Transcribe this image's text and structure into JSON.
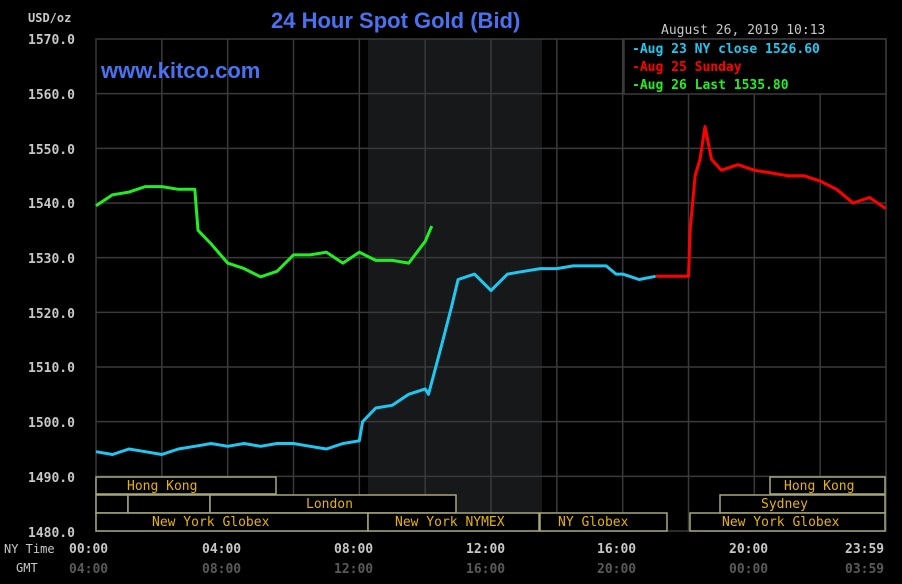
{
  "header": {
    "title": "24 Hour Spot Gold (Bid)",
    "brand": "www.kitco.com",
    "unit": "USD/oz",
    "timestamp": "August 26, 2019 10:13"
  },
  "legend": [
    {
      "label": "Aug 23 NY close 1526.60",
      "color": "#1ec8f0"
    },
    {
      "label": "Aug 25 Sunday",
      "color": "#ff0000"
    },
    {
      "label": "Aug 26 Last 1535.80",
      "color": "#22ee22"
    }
  ],
  "axis": {
    "y_ticks": [
      "1570.0",
      "1560.0",
      "1550.0",
      "1540.0",
      "1530.0",
      "1520.0",
      "1510.0",
      "1500.0",
      "1490.0",
      "1480.0"
    ],
    "x_row_label": "NY Time",
    "x_gmt_label": "GMT",
    "x_ticks_ny": [
      "00:00",
      "04:00",
      "08:00",
      "12:00",
      "16:00",
      "20:00",
      "23:59"
    ],
    "x_ticks_gmt": [
      "04:00",
      "08:00",
      "12:00",
      "16:00",
      "20:00",
      "00:00",
      "03:59"
    ]
  },
  "sessions": {
    "hong_kong_1": "Hong Kong",
    "london": "London",
    "ny_globex_1": "New York Globex",
    "ny_nymex": "New York NYMEX",
    "ny_globex_2": "NY Globex",
    "hong_kong_2": "Hong Kong",
    "sydney": "Sydney",
    "ny_globex_3": "New York Globex"
  },
  "colors": {
    "background": "#000000",
    "grid": "#3a3a3a",
    "shade": "#16181a",
    "session_border": "#a8a878",
    "session_text": "#e6b400",
    "aug23": "#1ec8f0",
    "aug25": "#ff0000",
    "aug26": "#22ee22"
  },
  "chart_data": {
    "type": "line",
    "title": "24 Hour Spot Gold (Bid)",
    "xlabel": "NY Time / GMT",
    "ylabel": "USD/oz",
    "ylim": [
      1480,
      1570
    ],
    "xlim_hours_ny": [
      0,
      24
    ],
    "grid": true,
    "legend_position": "top-right",
    "series": [
      {
        "name": "Aug 23 NY close 1526.60",
        "color": "#1ec8f0",
        "x_hours": [
          0,
          0.5,
          1,
          1.5,
          2,
          2.5,
          3,
          3.5,
          4,
          4.5,
          5,
          5.5,
          6,
          6.5,
          7,
          7.5,
          8,
          8.1,
          8.5,
          9,
          9.5,
          10,
          10.1,
          10.5,
          10.8,
          11,
          11.5,
          12,
          12.5,
          13,
          13.5,
          14,
          14.5,
          15,
          15.5,
          15.8,
          16,
          16.5,
          17
        ],
        "values": [
          1494.5,
          1494,
          1495,
          1494.5,
          1494,
          1495,
          1495.5,
          1496,
          1495.5,
          1496,
          1495.5,
          1496,
          1496,
          1495.5,
          1495,
          1496,
          1496.5,
          1500,
          1502.5,
          1503,
          1505,
          1506,
          1505,
          1514,
          1521,
          1526,
          1527,
          1524,
          1527,
          1527.5,
          1528,
          1528,
          1528.5,
          1528.5,
          1528.5,
          1527,
          1527,
          1526,
          1526.6
        ]
      },
      {
        "name": "Aug 25 Sunday",
        "color": "#ff0000",
        "x_hours": [
          17,
          18,
          18.05,
          18.2,
          18.35,
          18.5,
          18.7,
          19,
          19.5,
          20,
          20.5,
          21,
          21.5,
          22,
          22.5,
          23,
          23.5,
          23.99
        ],
        "values": [
          1526.6,
          1526.6,
          1535,
          1545,
          1548,
          1554,
          1548,
          1546,
          1547,
          1546,
          1545.5,
          1545,
          1545,
          1544,
          1542.5,
          1540,
          1541,
          1539
        ]
      },
      {
        "name": "Aug 26 Last 1535.80",
        "color": "#22ee22",
        "x_hours": [
          0,
          0.5,
          1,
          1.5,
          2,
          2.5,
          3,
          3.1,
          3.5,
          4,
          4.5,
          5,
          5.5,
          6,
          6.5,
          7,
          7.5,
          8,
          8.5,
          9,
          9.5,
          10,
          10.2
        ],
        "values": [
          1539.5,
          1541.5,
          1542,
          1543,
          1543,
          1542.5,
          1542.5,
          1535,
          1532.5,
          1529,
          1528,
          1526.5,
          1527.5,
          1530.5,
          1530.5,
          1531,
          1529,
          1531,
          1529.5,
          1529.5,
          1529,
          1533,
          1535.8
        ]
      }
    ]
  }
}
